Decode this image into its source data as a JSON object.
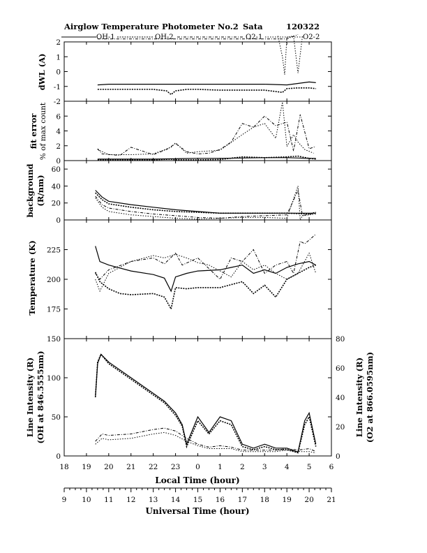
{
  "header": {
    "title": "Airglow Temperature Photometer No.2",
    "site": "Sata",
    "date": "120322"
  },
  "legend": [
    "OH-1",
    "OH-2",
    "O2-1",
    "O2-2"
  ],
  "xaxis": {
    "local_label": "Local Time (hour)",
    "local_ticks": [
      "18",
      "19",
      "20",
      "21",
      "22",
      "23",
      "0",
      "1",
      "2",
      "3",
      "4",
      "5",
      "6"
    ],
    "ut_label": "Universal Time (hour)",
    "ut_ticks": [
      "9",
      "10",
      "11",
      "12",
      "13",
      "14",
      "15",
      "16",
      "17",
      "18",
      "19",
      "20",
      "21"
    ]
  },
  "panels": [
    {
      "id": "dwl",
      "ylabel": [
        "dWL (A)"
      ],
      "yticks": [
        "2",
        "1",
        "0",
        "-1",
        "-2"
      ]
    },
    {
      "id": "fit",
      "ylabel": [
        "fit error",
        "% of max count"
      ],
      "yticks": [
        "6",
        "4",
        "2",
        "0"
      ]
    },
    {
      "id": "bg",
      "ylabel": [
        "background",
        "(R/nm)"
      ],
      "yticks": [
        "60",
        "40",
        "20",
        "0"
      ]
    },
    {
      "id": "temp",
      "ylabel": [
        "Temperature (K)"
      ],
      "yticks": [
        "225",
        "200",
        "175"
      ]
    },
    {
      "id": "int",
      "ylabel": [
        "Line Intensity (R)",
        "(OH at 846.5555nm)"
      ],
      "yticks": [
        "150",
        "100",
        "50",
        "0"
      ],
      "y2label": [
        "Line Intensity (R)",
        "(O2 at 866.0595nm)"
      ],
      "y2ticks": [
        "80",
        "60",
        "40",
        "20",
        "0"
      ]
    }
  ],
  "chart_data": {
    "type": "line",
    "title": "Airglow Temperature Photometer No.2   Sata   120322",
    "x_unit": "local time (hour, continuing past midnight: 24=0, 29=5)",
    "xlim": [
      18,
      30
    ],
    "series_names": [
      "OH-1",
      "OH-2",
      "O2-1",
      "O2-2"
    ],
    "panels": [
      {
        "ylabel": "dWL (A)",
        "ylim": [
          -2,
          2
        ],
        "series": [
          {
            "name": "OH-1",
            "x": [
              19.5,
              20,
              21,
              22,
              22.7,
              22.8,
              23.5,
              24,
              25,
              26,
              27,
              28,
              28.5,
              29,
              29.3
            ],
            "y": [
              -0.9,
              -0.85,
              -0.85,
              -0.85,
              -0.85,
              -0.85,
              -0.85,
              -0.85,
              -0.85,
              -0.85,
              -0.85,
              -0.9,
              -0.8,
              -0.7,
              -0.75
            ]
          },
          {
            "name": "OH-2",
            "x": [
              19.5,
              20,
              21,
              22,
              22.6,
              22.8,
              23,
              23.5,
              24,
              25,
              26,
              27,
              27.8,
              28,
              28.5,
              29,
              29.3
            ],
            "y": [
              -1.2,
              -1.2,
              -1.2,
              -1.2,
              -1.3,
              -1.55,
              -1.3,
              -1.2,
              -1.2,
              -1.25,
              -1.25,
              -1.25,
              -1.4,
              -1.15,
              -1.1,
              -1.1,
              -1.15
            ]
          },
          {
            "name": "O2-1",
            "x": [
              19.5,
              20,
              22,
              24,
              26,
              28,
              28.5
            ],
            "y": [
              2.2,
              2.2,
              2.2,
              2.2,
              2.2,
              2.2,
              2.5
            ]
          },
          {
            "name": "O2-2",
            "x": [
              27.6,
              27.8,
              27.9,
              28.0,
              28.3,
              28.5,
              28.7
            ],
            "y": [
              2.4,
              1.0,
              -0.2,
              2.3,
              2.4,
              -0.1,
              2.4
            ]
          }
        ]
      },
      {
        "ylabel": "fit error (% of max count)",
        "ylim": [
          0,
          8
        ],
        "series": [
          {
            "name": "OH-1",
            "x": [
              19.5,
              20,
              21,
              22,
              23,
              24,
              25,
              26,
              27,
              28,
              29,
              29.3
            ],
            "y": [
              0.2,
              0.2,
              0.2,
              0.2,
              0.25,
              0.3,
              0.3,
              0.35,
              0.4,
              0.4,
              0.3,
              0.3
            ]
          },
          {
            "name": "OH-2",
            "x": [
              19.5,
              20,
              21,
              22,
              22.8,
              23,
              24,
              25,
              26,
              27,
              28,
              28.5,
              29,
              29.3
            ],
            "y": [
              0.1,
              0.1,
              0.1,
              0.1,
              0.2,
              0.1,
              0.1,
              0.15,
              0.5,
              0.4,
              0.5,
              0.6,
              0.3,
              0.2
            ]
          },
          {
            "name": "O2-1",
            "x": [
              19.5,
              19.7,
              20.5,
              21,
              22,
              22.6,
              23,
              23.5,
              24,
              24.5,
              25,
              25.5,
              26,
              26.5,
              27,
              27.5,
              28,
              28.3,
              28.6,
              29,
              29.3
            ],
            "y": [
              1.6,
              0.9,
              0.7,
              1.8,
              0.8,
              1.5,
              2.3,
              1.2,
              0.9,
              1.0,
              1.5,
              2.5,
              5.0,
              4.5,
              6.0,
              4.7,
              5.2,
              1.3,
              6.2,
              1.6,
              1.9
            ]
          },
          {
            "name": "O2-2",
            "x": [
              19.5,
              20,
              21,
              22,
              22.8,
              23,
              23.5,
              24,
              25,
              26,
              26.5,
              27,
              27.5,
              27.8,
              28,
              28.3,
              28.5,
              28.8,
              29.2
            ],
            "y": [
              1.5,
              0.8,
              0.8,
              0.9,
              1.8,
              2.4,
              1.0,
              1.2,
              1.4,
              3.5,
              4.5,
              5.0,
              3.0,
              7.9,
              1.9,
              3.5,
              2.5,
              1.5,
              1.0
            ]
          }
        ]
      },
      {
        "ylabel": "background (R/nm)",
        "ylim": [
          0,
          70
        ],
        "series": [
          {
            "name": "OH-1",
            "x": [
              19.4,
              19.7,
              20,
              21,
              22,
              23,
              24,
              25,
              26,
              27,
              28,
              29,
              29.3
            ],
            "y": [
              35,
              27,
              22,
              18,
              15,
              12,
              10,
              8,
              8,
              8,
              8,
              8,
              8
            ]
          },
          {
            "name": "OH-2",
            "x": [
              19.4,
              19.7,
              20,
              21,
              22,
              23,
              24,
              25,
              26,
              27,
              28,
              29,
              29.3
            ],
            "y": [
              32,
              24,
              19,
              15,
              12,
              10,
              9,
              8,
              8,
              8,
              8,
              7,
              9
            ]
          },
          {
            "name": "O2-1",
            "x": [
              19.4,
              19.7,
              20,
              21,
              22,
              23,
              24,
              25,
              26,
              27,
              28,
              28.5,
              28.7,
              29,
              29.3
            ],
            "y": [
              28,
              18,
              14,
              10,
              7,
              5,
              3,
              2,
              4,
              5,
              6,
              35,
              5,
              7,
              8
            ]
          },
          {
            "name": "O2-2",
            "x": [
              19.4,
              19.7,
              20,
              21,
              22,
              23,
              24,
              25,
              26,
              27,
              28,
              28.5,
              28.6,
              28.7,
              29,
              29.3
            ],
            "y": [
              26,
              15,
              10,
              6,
              4,
              2,
              1,
              2,
              3,
              3,
              2,
              40,
              0,
              5,
              6,
              7
            ]
          }
        ]
      },
      {
        "ylabel": "Temperature (K)",
        "ylim": [
          150,
          250
        ],
        "series": [
          {
            "name": "OH-1",
            "x": [
              19.4,
              19.6,
              20,
              21,
              22,
              22.5,
              22.8,
              23,
              23.5,
              24,
              25,
              25.5,
              26,
              26.5,
              27,
              27.5,
              28,
              28.5,
              29,
              29.3
            ],
            "y": [
              228,
              215,
              212,
              207,
              204,
              201,
              190,
              202,
              205,
              207,
              208,
              210,
              212,
              205,
              208,
              205,
              210,
              213,
              215,
              212
            ]
          },
          {
            "name": "OH-2",
            "x": [
              19.4,
              19.6,
              20,
              20.5,
              21,
              22,
              22.5,
              22.8,
              23,
              23.5,
              24,
              25,
              26,
              26.5,
              27,
              27.5,
              28,
              28.5,
              29,
              29.3
            ],
            "y": [
              206,
              198,
              192,
              188,
              187,
              188,
              185,
              175,
              193,
              192,
              193,
              193,
              198,
              188,
              195,
              185,
              200,
              205,
              210,
              212
            ]
          },
          {
            "name": "O2-1",
            "x": [
              19.4,
              19.6,
              20,
              21,
              22,
              22.5,
              23,
              23.3,
              24,
              24.5,
              25,
              25.5,
              26,
              26.5,
              27,
              27.5,
              28,
              28.3,
              28.6,
              28.8,
              29,
              29.3
            ],
            "y": [
              205,
              200,
              208,
              215,
              218,
              213,
              222,
              212,
              218,
              209,
              200,
              218,
              215,
              225,
              205,
              212,
              215,
              205,
              232,
              230,
              233,
              238
            ]
          },
          {
            "name": "O2-2",
            "x": [
              19.4,
              19.6,
              20,
              21,
              22,
              22.5,
              23,
              23.5,
              24,
              24.5,
              25,
              25.5,
              26,
              26.5,
              27,
              27.5,
              28,
              28.5,
              29,
              29.3
            ],
            "y": [
              200,
              190,
              205,
              215,
              220,
              218,
              221,
              218,
              214,
              212,
              207,
              202,
              215,
              208,
              212,
              205,
              200,
              205,
              222,
              205
            ]
          }
        ]
      },
      {
        "ylabel": "Line Intensity (R) (OH at 846.5555nm)",
        "ylim": [
          0,
          150
        ],
        "y2label": "Line Intensity (R) (O2 at 866.0595nm)",
        "y2lim": [
          0,
          80
        ],
        "series": [
          {
            "name": "OH-1",
            "axis": "left",
            "x": [
              19.4,
              19.5,
              19.65,
              20,
              21,
              22,
              22.5,
              23,
              23.3,
              23.5,
              24,
              24.5,
              25,
              25.5,
              26,
              26.5,
              27,
              27.5,
              28,
              28.5,
              28.8,
              29,
              29.3
            ],
            "y": [
              75,
              118,
              130,
              120,
              100,
              80,
              70,
              55,
              40,
              15,
              50,
              30,
              50,
              45,
              15,
              10,
              15,
              10,
              10,
              5,
              45,
              55,
              15
            ]
          },
          {
            "name": "OH-2",
            "axis": "left",
            "x": [
              19.4,
              19.5,
              19.65,
              20,
              21,
              22,
              22.5,
              23,
              23.3,
              23.5,
              24,
              24.5,
              25,
              25.5,
              26,
              26.5,
              27,
              27.5,
              28,
              28.5,
              28.8,
              29,
              29.3
            ],
            "y": [
              75,
              120,
              130,
              118,
              98,
              78,
              68,
              52,
              38,
              12,
              45,
              28,
              45,
              40,
              12,
              8,
              12,
              8,
              8,
              4,
              40,
              50,
              12
            ]
          },
          {
            "name": "O2-1",
            "axis": "right",
            "x": [
              19.4,
              19.7,
              20,
              21,
              22,
              22.5,
              23,
              23.5,
              24,
              24.5,
              25,
              25.5,
              26,
              26.5,
              27,
              27.5,
              28,
              28.5,
              29,
              29.3
            ],
            "y": [
              10,
              15,
              14,
              15,
              18,
              19,
              17,
              12,
              8,
              6,
              7,
              6,
              4,
              4,
              4,
              4,
              5,
              4,
              5,
              3
            ]
          },
          {
            "name": "O2-2",
            "axis": "right",
            "x": [
              19.4,
              19.7,
              20,
              21,
              22,
              22.5,
              23,
              23.5,
              24,
              24.5,
              25,
              25.5,
              26,
              26.5,
              27,
              27.5,
              28,
              28.5,
              29,
              29.3
            ],
            "y": [
              8,
              12,
              11,
              12,
              15,
              16,
              14,
              10,
              7,
              5,
              5,
              5,
              3,
              3,
              3,
              3,
              4,
              3,
              3,
              2
            ]
          }
        ]
      }
    ]
  }
}
